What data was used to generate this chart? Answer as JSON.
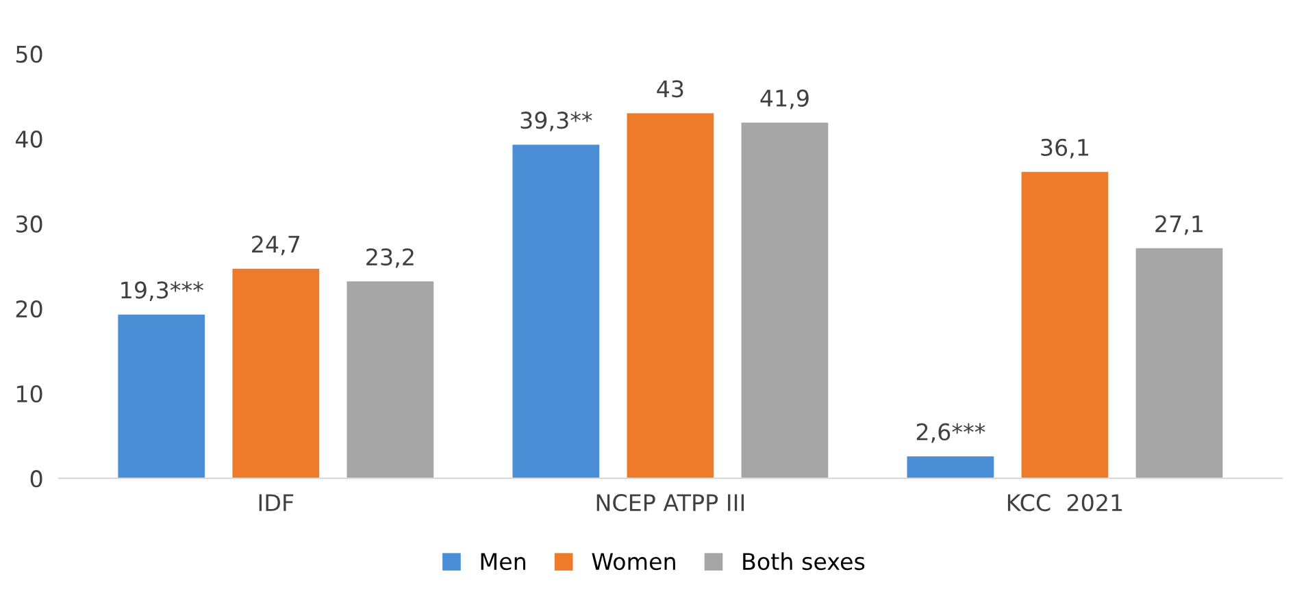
{
  "chart_data": {
    "type": "bar",
    "categories": [
      "IDF",
      "NCEP ATPP III",
      "KCC  2021"
    ],
    "series": [
      {
        "name": "Men",
        "color": "#4a8fd6",
        "values": [
          19.3,
          39.3,
          2.6
        ],
        "value_labels": [
          "19,3***",
          "39,3**",
          "2,6***"
        ]
      },
      {
        "name": "Women",
        "color": "#ee7a2c",
        "values": [
          24.7,
          43,
          36.1
        ],
        "value_labels": [
          "24,7",
          "43",
          "36,1"
        ]
      },
      {
        "name": "Both sexes",
        "color": "#a6a6a6",
        "values": [
          23.2,
          41.9,
          27.1
        ],
        "value_labels": [
          "23,2",
          "41,9",
          "27,1"
        ]
      }
    ],
    "ylim": [
      0,
      50
    ],
    "yticks": [
      0,
      10,
      20,
      30,
      40,
      50
    ],
    "grid": false,
    "legend": "bottom"
  }
}
